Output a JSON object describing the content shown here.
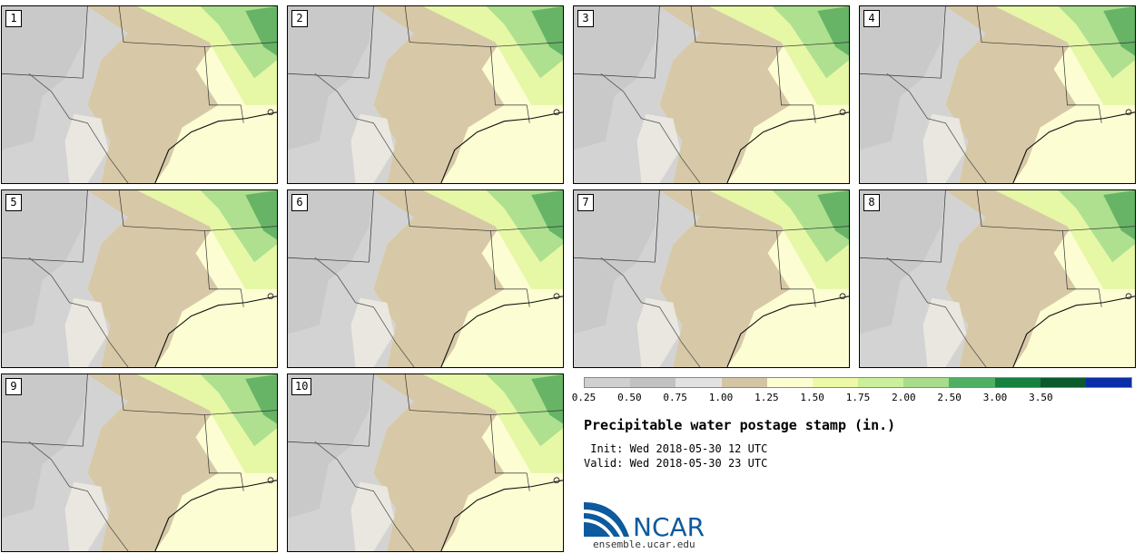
{
  "panels": [
    {
      "label": "1"
    },
    {
      "label": "2"
    },
    {
      "label": "3"
    },
    {
      "label": "4"
    },
    {
      "label": "5"
    },
    {
      "label": "6"
    },
    {
      "label": "7"
    },
    {
      "label": "8"
    },
    {
      "label": "9"
    },
    {
      "label": "10"
    }
  ],
  "colorbar": {
    "labels": [
      "0.25",
      "0.50",
      "0.75",
      "1.00",
      "1.25",
      "1.50",
      "1.75",
      "2.00",
      "2.50",
      "3.00",
      "3.50"
    ],
    "colors": [
      "#d0d0d0",
      "#c2c2c2",
      "#e3e2e0",
      "#d4c5a4",
      "#fdfdd2",
      "#eef9a8",
      "#cbef9a",
      "#a8dc8a",
      "#4fb063",
      "#15803f",
      "#0a5a2c",
      "#0b2ea8"
    ]
  },
  "title": "Precipitable water postage stamp (in.)",
  "init": " Init: Wed 2018-05-30 12 UTC",
  "valid": "Valid: Wed 2018-05-30 23 UTC",
  "logo": {
    "text": "NCAR",
    "website": "ensemble.ucar.edu"
  },
  "map_colors": {
    "dry_gray": "#d3d3d3",
    "tan": "#d7c9a7",
    "light_yellow": "#fdfdd3",
    "light_green": "#e6f7a6",
    "green": "#aee08f",
    "dark_green": "#2e8f47"
  }
}
